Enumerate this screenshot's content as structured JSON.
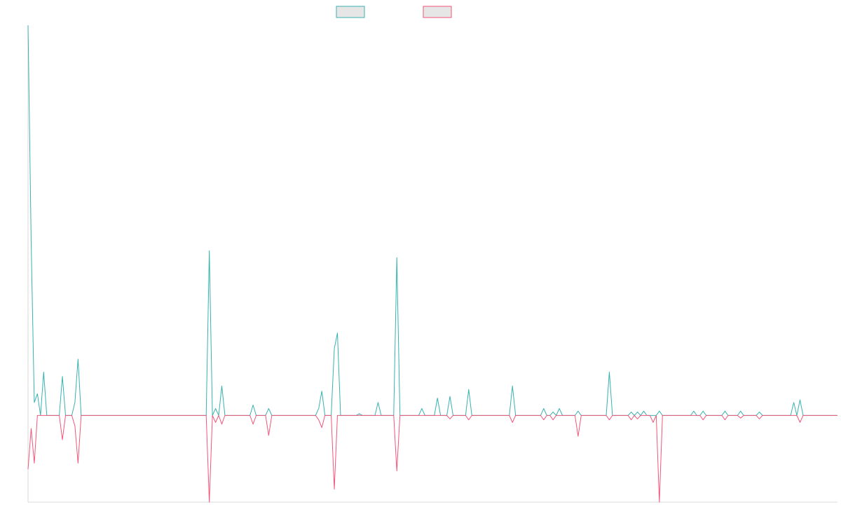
{
  "chart_data": {
    "type": "line",
    "title": "",
    "xlabel": "",
    "ylabel": "",
    "legend": {
      "position": "top-center"
    },
    "grid": false,
    "n_points": 260,
    "xlim": [
      0,
      259
    ],
    "ylim": [
      -1,
      4.5
    ],
    "series": [
      {
        "color": "#38b2b0",
        "sparse": [
          [
            0,
            4.5
          ],
          [
            1,
            2.0
          ],
          [
            2,
            0.15
          ],
          [
            3,
            0.25
          ],
          [
            5,
            0.5
          ],
          [
            11,
            0.45
          ],
          [
            15,
            0.15
          ],
          [
            16,
            0.65
          ],
          [
            58,
            1.9
          ],
          [
            60,
            0.08
          ],
          [
            62,
            0.34
          ],
          [
            72,
            0.12
          ],
          [
            77,
            0.08
          ],
          [
            93,
            0.08
          ],
          [
            94,
            0.28
          ],
          [
            98,
            0.77
          ],
          [
            99,
            0.95
          ],
          [
            106,
            0.02
          ],
          [
            112,
            0.15
          ],
          [
            118,
            1.82
          ],
          [
            126,
            0.08
          ],
          [
            131,
            0.2
          ],
          [
            135,
            0.22
          ],
          [
            141,
            0.3
          ],
          [
            155,
            0.34
          ],
          [
            165,
            0.08
          ],
          [
            168,
            0.04
          ],
          [
            170,
            0.08
          ],
          [
            176,
            0.05
          ],
          [
            186,
            0.5
          ],
          [
            193,
            0.04
          ],
          [
            195,
            0.04
          ],
          [
            197,
            0.05
          ],
          [
            202,
            0.05
          ],
          [
            213,
            0.05
          ],
          [
            216,
            0.05
          ],
          [
            223,
            0.05
          ],
          [
            228,
            0.05
          ],
          [
            234,
            0.04
          ],
          [
            245,
            0.15
          ],
          [
            247,
            0.18
          ]
        ]
      },
      {
        "color": "#f0567a",
        "sparse": [
          [
            0,
            -0.62
          ],
          [
            1,
            -0.15
          ],
          [
            2,
            -0.55
          ],
          [
            11,
            -0.28
          ],
          [
            15,
            -0.12
          ],
          [
            16,
            -0.55
          ],
          [
            58,
            -1.0
          ],
          [
            60,
            -0.08
          ],
          [
            62,
            -0.1
          ],
          [
            72,
            -0.1
          ],
          [
            77,
            -0.23
          ],
          [
            93,
            -0.05
          ],
          [
            94,
            -0.14
          ],
          [
            98,
            -0.85
          ],
          [
            118,
            -0.64
          ],
          [
            135,
            -0.04
          ],
          [
            141,
            -0.05
          ],
          [
            155,
            -0.08
          ],
          [
            165,
            -0.05
          ],
          [
            168,
            -0.05
          ],
          [
            176,
            -0.24
          ],
          [
            186,
            -0.05
          ],
          [
            193,
            -0.05
          ],
          [
            195,
            -0.04
          ],
          [
            200,
            -0.08
          ],
          [
            202,
            -1.0
          ],
          [
            216,
            -0.05
          ],
          [
            223,
            -0.05
          ],
          [
            228,
            -0.03
          ],
          [
            234,
            -0.04
          ],
          [
            247,
            -0.08
          ]
        ]
      }
    ]
  }
}
